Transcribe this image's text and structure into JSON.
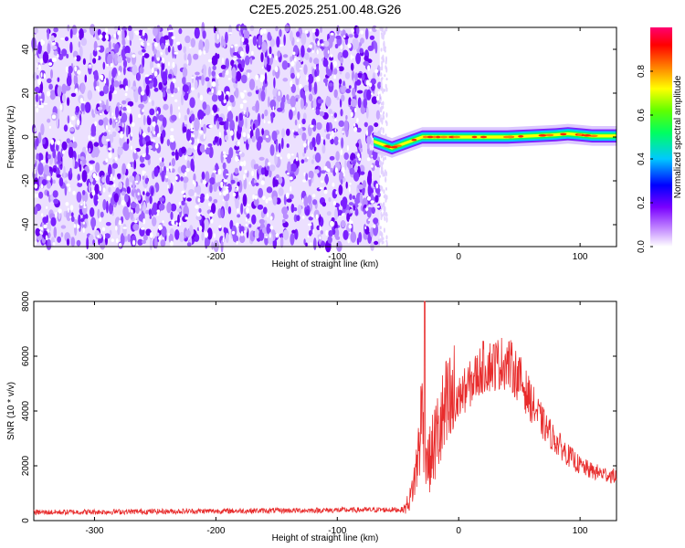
{
  "chart_data": [
    {
      "type": "heatmap",
      "title": "C2E5.2025.251.00.48.G26",
      "xlabel": "Height of straight line (km)",
      "ylabel": "Frequency (Hz)",
      "xlim": [
        -350,
        130
      ],
      "ylim": [
        -50,
        50
      ],
      "xticks": [
        -300,
        -200,
        -100,
        0,
        100
      ],
      "yticks": [
        -40,
        -20,
        0,
        20,
        40
      ],
      "noise_region_x": [
        -350,
        -65
      ],
      "signal_track": {
        "x": [
          -70,
          -65,
          -60,
          -55,
          -50,
          -45,
          -40,
          -35,
          -30,
          -20,
          -10,
          0,
          20,
          40,
          60,
          80,
          90,
          100,
          110,
          120,
          130
        ],
        "freq": [
          -2,
          -3,
          -4,
          -5,
          -4,
          -3,
          -2,
          -1,
          0,
          0,
          0,
          0,
          0,
          0,
          0.5,
          1,
          1.5,
          1,
          0.5,
          0.5,
          0.5
        ]
      },
      "colorbar": {
        "label": "Normalized spectral amplitude",
        "ticks": [
          "0.0",
          "0.2",
          "0.4",
          "0.6",
          "0.8"
        ],
        "range": [
          0,
          1
        ]
      }
    },
    {
      "type": "line",
      "xlabel": "Height of straight line (km)",
      "ylabel": "SNR (10 * v/v)",
      "xlim": [
        -350,
        130
      ],
      "ylim": [
        0,
        8000
      ],
      "xticks": [
        -300,
        -200,
        -100,
        0,
        100
      ],
      "yticks": [
        0,
        2000,
        4000,
        6000,
        8000
      ],
      "color": "#e82c2c",
      "envelope": {
        "x": [
          -350,
          -45,
          -40,
          -35,
          -30,
          -25,
          -20,
          -15,
          -10,
          -5,
          0,
          10,
          20,
          30,
          40,
          50,
          60,
          70,
          80,
          90,
          100,
          110,
          120,
          130
        ],
        "y": [
          300,
          400,
          800,
          1800,
          4000,
          2000,
          2800,
          3400,
          3900,
          4200,
          4500,
          5000,
          5600,
          5700,
          5800,
          5200,
          4300,
          3500,
          2900,
          2400,
          2000,
          1800,
          1700,
          1600
        ]
      },
      "spike": {
        "x": -28,
        "y": 8000
      }
    }
  ]
}
